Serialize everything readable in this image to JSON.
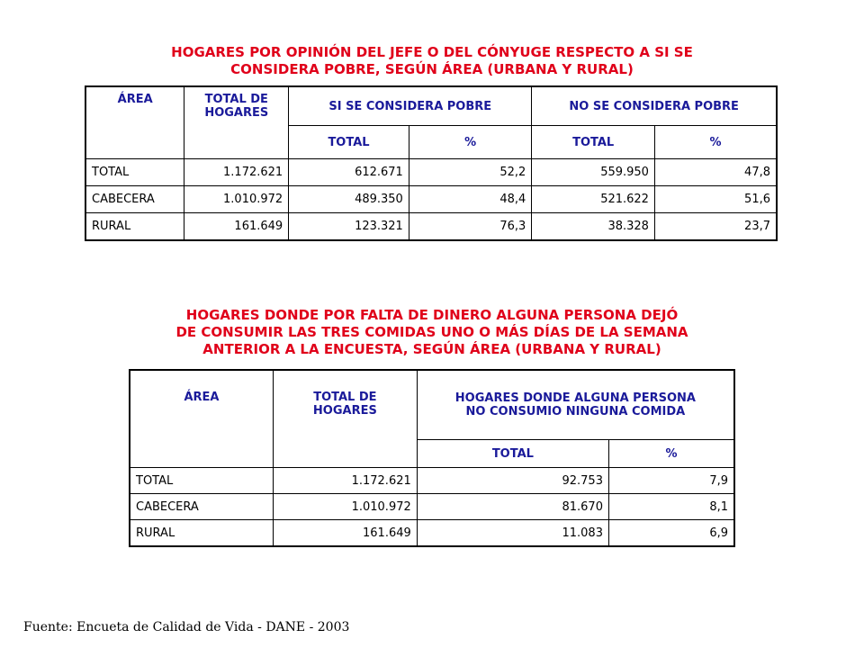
{
  "table1": {
    "title_lines": [
      "HOGARES POR OPINIÓN DEL JEFE O DEL CÓNYUGE RESPECTO A SI SE",
      "CONSIDERA POBRE, SEGÚN ÁREA (URBANA Y RURAL)"
    ],
    "headers": {
      "area": "ÁREA",
      "total_hogares": "TOTAL DE HOGARES",
      "si_pobre": "SI SE CONSIDERA POBRE",
      "no_pobre": "NO SE CONSIDERA POBRE",
      "total": "TOTAL",
      "pct": "%"
    },
    "rows": [
      {
        "area": "TOTAL",
        "total": "1.172.621",
        "si_total": "612.671",
        "si_pct": "52,2",
        "no_total": "559.950",
        "no_pct": "47,8"
      },
      {
        "area": "CABECERA",
        "total": "1.010.972",
        "si_total": "489.350",
        "si_pct": "48,4",
        "no_total": "521.622",
        "no_pct": "51,6"
      },
      {
        "area": "RURAL",
        "total": "161.649",
        "si_total": "123.321",
        "si_pct": "76,3",
        "no_total": "38.328",
        "no_pct": "23,7"
      }
    ]
  },
  "table2": {
    "title_lines": [
      "HOGARES DONDE POR FALTA DE DINERO ALGUNA PERSONA DEJÓ",
      "DE CONSUMIR LAS TRES COMIDAS UNO O MÁS DÍAS DE LA SEMANA",
      "ANTERIOR A LA ENCUESTA,  SEGÚN ÁREA (URBANA Y RURAL)"
    ],
    "headers": {
      "area": "ÁREA",
      "total_hogares": "TOTAL DE HOGARES",
      "no_consumio": "HOGARES DONDE ALGUNA PERSONA NO CONSUMIO NINGUNA COMIDA",
      "total": "TOTAL",
      "pct": "%"
    },
    "rows": [
      {
        "area": "TOTAL",
        "total": "1.172.621",
        "nc_total": "92.753",
        "nc_pct": "7,9"
      },
      {
        "area": "CABECERA",
        "total": "1.010.972",
        "nc_total": "81.670",
        "nc_pct": "8,1"
      },
      {
        "area": "RURAL",
        "total": "161.649",
        "nc_total": "11.083",
        "nc_pct": "6,9"
      }
    ]
  },
  "source": "Fuente:  Encueta de Calidad de Vida - DANE - 2003",
  "colors": {
    "title": "#e0001a",
    "header": "#1a1a9a"
  }
}
